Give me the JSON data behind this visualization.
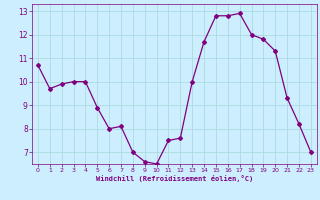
{
  "hours": [
    0,
    1,
    2,
    3,
    4,
    5,
    6,
    7,
    8,
    9,
    10,
    11,
    12,
    13,
    14,
    15,
    16,
    17,
    18,
    19,
    20,
    21,
    22,
    23
  ],
  "values": [
    10.7,
    9.7,
    9.9,
    10.0,
    10.0,
    8.9,
    8.0,
    8.1,
    7.0,
    6.6,
    6.5,
    7.5,
    7.6,
    10.0,
    11.7,
    12.8,
    12.8,
    12.9,
    12.0,
    11.8,
    11.3,
    9.3,
    8.2,
    7.0
  ],
  "line_color": "#800080",
  "marker": "D",
  "marker_size": 2,
  "bg_color": "#cceeff",
  "grid_color": "#aadddd",
  "xlabel": "Windchill (Refroidissement éolien,°C)",
  "xlabel_color": "#800080",
  "tick_color": "#800080",
  "ylim": [
    6.5,
    13.3
  ],
  "yticks": [
    7,
    8,
    9,
    10,
    11,
    12,
    13
  ],
  "xlim": [
    -0.5,
    23.5
  ],
  "xticks": [
    0,
    1,
    2,
    3,
    4,
    5,
    6,
    7,
    8,
    9,
    10,
    11,
    12,
    13,
    14,
    15,
    16,
    17,
    18,
    19,
    20,
    21,
    22,
    23
  ]
}
